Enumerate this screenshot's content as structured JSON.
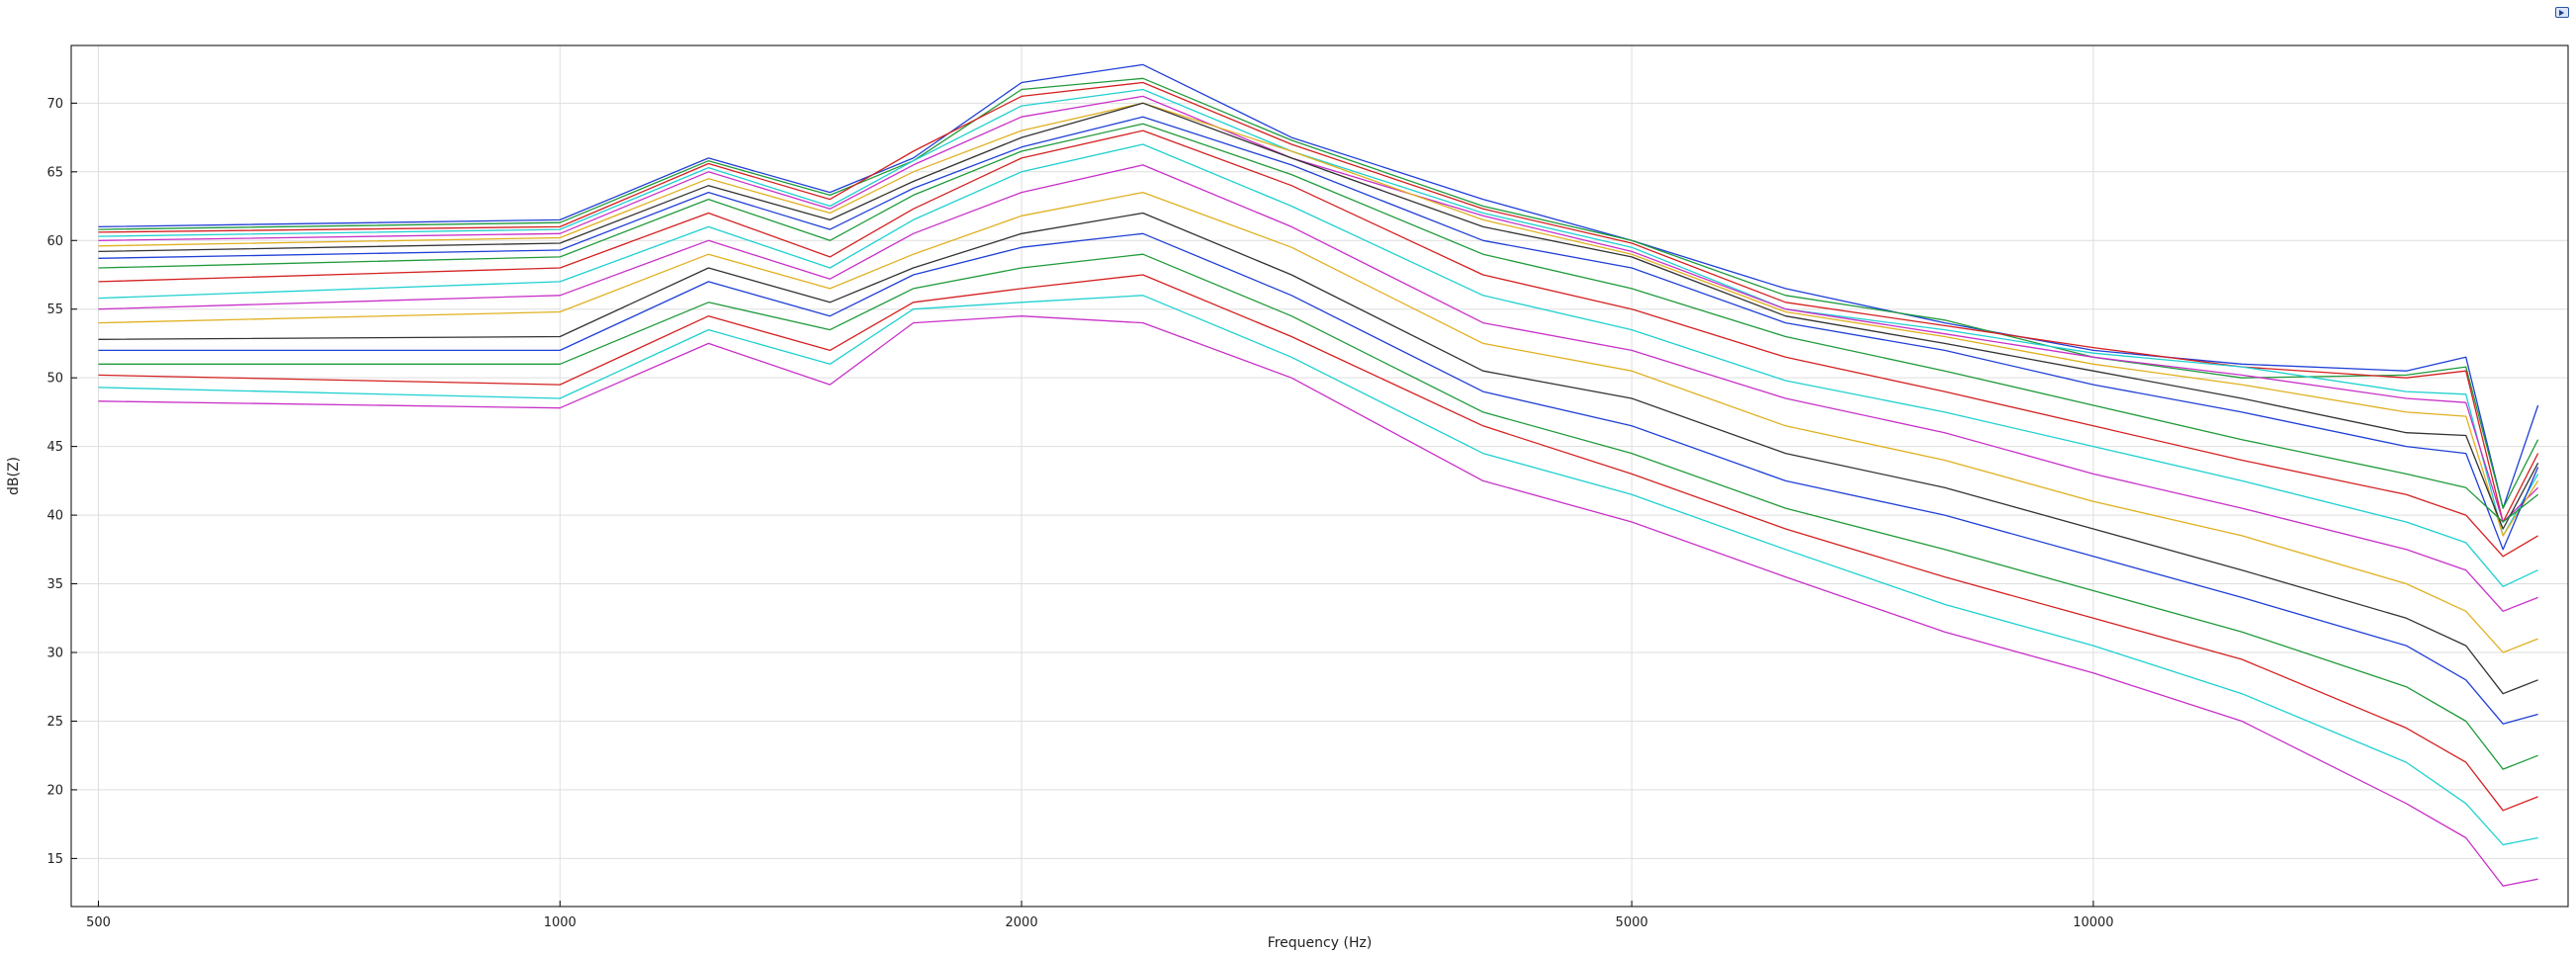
{
  "toolbar": {
    "corner_icon": "graph-export-icon"
  },
  "chart_data": {
    "type": "line",
    "title": "",
    "xlabel": "Frequency (Hz)",
    "ylabel": "dB(Z)",
    "xscale": "log",
    "xlim": [
      480,
      20400
    ],
    "ylim": [
      11.5,
      74.2
    ],
    "grid": true,
    "legend": "none",
    "x_ticks": [
      500,
      1000,
      2000,
      5000,
      10000
    ],
    "y_ticks": [
      15,
      20,
      25,
      30,
      35,
      40,
      45,
      50,
      55,
      60,
      65,
      70
    ],
    "x_tick_labels": [
      "500",
      "1000",
      "2000",
      "5000",
      "10000"
    ],
    "y_tick_labels": [
      "15",
      "20",
      "25",
      "30",
      "35",
      "40",
      "45",
      "50",
      "55",
      "60",
      "65",
      "70"
    ],
    "x": [
      500,
      1000,
      1250,
      1500,
      1700,
      2000,
      2400,
      3000,
      4000,
      5000,
      6300,
      8000,
      10000,
      12500,
      16000,
      17500,
      18500,
      19500
    ],
    "series": [
      {
        "color": "#1f3fd6",
        "values": [
          61.0,
          61.5,
          66.0,
          63.5,
          66.0,
          71.5,
          72.8,
          67.5,
          63.0,
          60.0,
          56.5,
          54.0,
          52.0,
          51.0,
          50.5,
          51.5,
          40.5,
          48.0
        ]
      },
      {
        "color": "#1f9a3a",
        "values": [
          60.8,
          61.3,
          65.8,
          63.3,
          65.8,
          71.0,
          71.8,
          67.3,
          62.5,
          60.0,
          56.0,
          54.2,
          51.5,
          50.0,
          50.2,
          50.8,
          40.5,
          45.5
        ]
      },
      {
        "color": "#d42020",
        "values": [
          60.6,
          61.0,
          65.6,
          63.0,
          66.5,
          70.5,
          71.5,
          67.0,
          62.3,
          59.8,
          55.5,
          53.8,
          52.2,
          50.8,
          50.0,
          50.5,
          39.5,
          44.5
        ]
      },
      {
        "color": "#1fd0d0",
        "values": [
          60.3,
          60.8,
          65.3,
          62.5,
          65.8,
          69.8,
          71.0,
          66.5,
          62.0,
          59.5,
          55.0,
          53.5,
          51.8,
          50.8,
          49.0,
          48.8,
          38.5,
          43.0
        ]
      },
      {
        "color": "#c830c8",
        "values": [
          60.0,
          60.5,
          65.0,
          62.3,
          65.5,
          69.0,
          70.5,
          66.0,
          61.8,
          59.2,
          55.0,
          53.2,
          51.5,
          50.2,
          48.5,
          48.2,
          39.5,
          42.0
        ]
      },
      {
        "color": "#e0b020",
        "values": [
          59.6,
          60.2,
          64.5,
          62.0,
          65.0,
          68.0,
          70.0,
          66.5,
          61.5,
          59.0,
          54.8,
          53.0,
          51.0,
          49.5,
          47.5,
          47.2,
          38.5,
          42.5
        ]
      },
      {
        "color": "#333333",
        "values": [
          59.2,
          59.8,
          64.0,
          61.5,
          64.3,
          67.5,
          70.0,
          66.0,
          61.0,
          58.8,
          54.5,
          52.5,
          50.5,
          48.5,
          46.0,
          45.8,
          39.0,
          43.8
        ]
      },
      {
        "color": "#1f3fd6",
        "values": [
          58.7,
          59.3,
          63.5,
          60.8,
          63.8,
          66.8,
          69.0,
          65.5,
          60.0,
          58.0,
          54.0,
          52.0,
          49.5,
          47.5,
          45.0,
          44.5,
          37.5,
          43.5
        ]
      },
      {
        "color": "#1f9a3a",
        "values": [
          58.0,
          58.8,
          63.0,
          60.0,
          63.3,
          66.5,
          68.5,
          64.8,
          59.0,
          56.5,
          53.0,
          50.5,
          48.0,
          45.5,
          43.0,
          42.0,
          39.5,
          41.5
        ]
      },
      {
        "color": "#d42020",
        "values": [
          57.0,
          58.0,
          62.0,
          58.8,
          62.3,
          66.0,
          68.0,
          64.0,
          57.5,
          55.0,
          51.5,
          49.0,
          46.5,
          44.0,
          41.5,
          40.0,
          37.0,
          38.5
        ]
      },
      {
        "color": "#1fd0d0",
        "values": [
          55.8,
          57.0,
          61.0,
          58.0,
          61.5,
          65.0,
          67.0,
          62.5,
          56.0,
          53.5,
          49.8,
          47.5,
          45.0,
          42.5,
          39.5,
          38.0,
          34.8,
          36.0
        ]
      },
      {
        "color": "#c830c8",
        "values": [
          55.0,
          56.0,
          60.0,
          57.2,
          60.5,
          63.5,
          65.5,
          61.0,
          54.0,
          52.0,
          48.5,
          46.0,
          43.0,
          40.5,
          37.5,
          36.0,
          33.0,
          34.0
        ]
      },
      {
        "color": "#e0b020",
        "values": [
          54.0,
          54.8,
          59.0,
          56.5,
          59.0,
          61.8,
          63.5,
          59.5,
          52.5,
          50.5,
          46.5,
          44.0,
          41.0,
          38.5,
          35.0,
          33.0,
          30.0,
          31.0
        ]
      },
      {
        "color": "#333333",
        "values": [
          52.8,
          53.0,
          58.0,
          55.5,
          58.0,
          60.5,
          62.0,
          57.5,
          50.5,
          48.5,
          44.5,
          42.0,
          39.0,
          36.0,
          32.5,
          30.5,
          27.0,
          28.0
        ]
      },
      {
        "color": "#1f3fd6",
        "values": [
          52.0,
          52.0,
          57.0,
          54.5,
          57.5,
          59.5,
          60.5,
          56.0,
          49.0,
          46.5,
          42.5,
          40.0,
          37.0,
          34.0,
          30.5,
          28.0,
          24.8,
          25.5
        ]
      },
      {
        "color": "#1f9a3a",
        "values": [
          51.0,
          51.0,
          55.5,
          53.5,
          56.5,
          58.0,
          59.0,
          54.5,
          47.5,
          44.5,
          40.5,
          37.5,
          34.5,
          31.5,
          27.5,
          25.0,
          21.5,
          22.5
        ]
      },
      {
        "color": "#d42020",
        "values": [
          50.2,
          49.5,
          54.5,
          52.0,
          55.5,
          56.5,
          57.5,
          53.0,
          46.5,
          43.0,
          39.0,
          35.5,
          32.5,
          29.5,
          24.5,
          22.0,
          18.5,
          19.5
        ]
      },
      {
        "color": "#1fd0d0",
        "values": [
          49.3,
          48.5,
          53.5,
          51.0,
          55.0,
          55.5,
          56.0,
          51.5,
          44.5,
          41.5,
          37.5,
          33.5,
          30.5,
          27.0,
          22.0,
          19.0,
          16.0,
          16.5
        ]
      },
      {
        "color": "#c830c8",
        "values": [
          48.3,
          47.8,
          52.5,
          49.5,
          54.0,
          54.5,
          54.0,
          50.0,
          42.5,
          39.5,
          35.5,
          31.5,
          28.5,
          25.0,
          19.0,
          16.5,
          13.0,
          13.5
        ]
      }
    ]
  }
}
